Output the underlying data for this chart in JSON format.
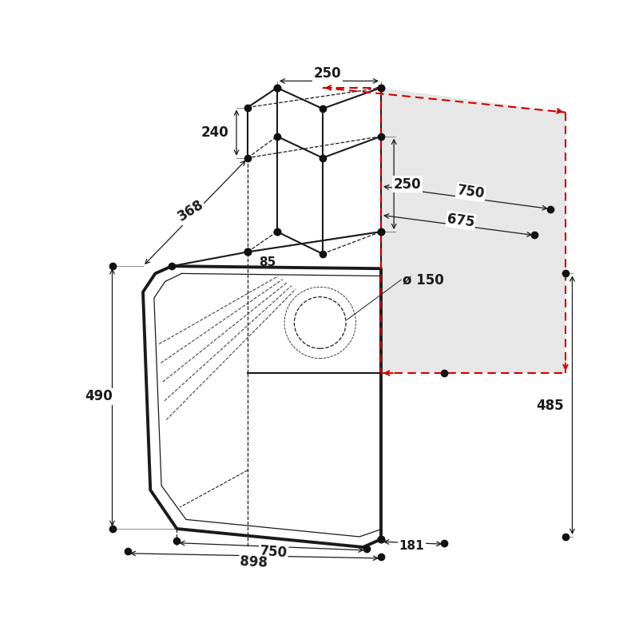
{
  "bg_color": "#ffffff",
  "line_color": "#1a1a1a",
  "dim_color": "#cc0000",
  "gray_fill": "#d0d0d0",
  "dot_color": "#111111",
  "dot_size": 6,
  "labels": {
    "250_top": "250",
    "240": "240",
    "368": "368",
    "85": "85",
    "250_side": "250",
    "750_top": "750",
    "675": "675",
    "dia150": "ø 150",
    "490": "490",
    "485": "485",
    "750_bot": "750",
    "898": "898",
    "181": "181"
  }
}
